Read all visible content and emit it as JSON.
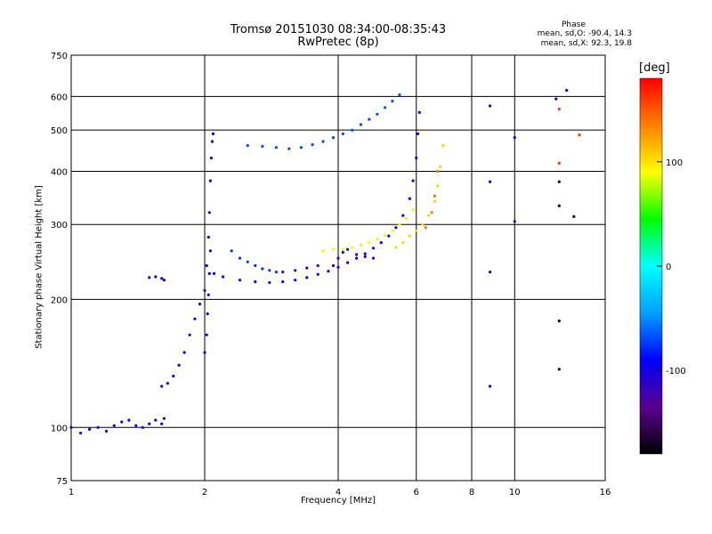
{
  "chart_data": {
    "type": "scatter",
    "title": "Tromsø 20151030 08:34:00-08:35:43",
    "subtitle": "RwPretec (8p)",
    "xlabel": "Frequency [MHz]",
    "ylabel": "Stationary phase Virtual Height [km]",
    "xscale": "log",
    "yscale": "log",
    "xlim": [
      1,
      16
    ],
    "ylim": [
      75,
      750
    ],
    "xticks": [
      1,
      2,
      4,
      6,
      8,
      10,
      16
    ],
    "xtick_labels": [
      "1",
      "2",
      "4",
      "6",
      "8",
      "10",
      "16"
    ],
    "yticks": [
      75,
      100,
      200,
      300,
      400,
      500,
      600,
      750
    ],
    "ytick_labels": [
      "75",
      "100",
      "200",
      "300",
      "400",
      "500",
      "600",
      "750"
    ],
    "grid": true,
    "phase_legend": {
      "heading": "Phase",
      "line_o": "mean, sd,O: -90.4, 14.3",
      "line_x": "mean, sd,X:  92.3, 19.8"
    },
    "colorbar": {
      "label": "[deg]",
      "ticks": [
        100,
        0,
        -100
      ],
      "tick_labels": [
        "100",
        "0",
        "-100"
      ],
      "range": [
        -180,
        180
      ],
      "colors": [
        "#000000",
        "#5a0090",
        "#0000ff",
        "#00a0ff",
        "#00ffff",
        "#00ff00",
        "#ffff00",
        "#ff8000",
        "#ff0000"
      ]
    },
    "traces": [
      {
        "name": "",
        "phase": -95,
        "points": [
          [
            1.0,
            100
          ],
          [
            1.05,
            97
          ],
          [
            1.1,
            99
          ],
          [
            1.15,
            100
          ],
          [
            1.2,
            98
          ],
          [
            1.25,
            101
          ],
          [
            1.3,
            103
          ],
          [
            1.35,
            104
          ],
          [
            1.4,
            101
          ],
          [
            1.45,
            100
          ],
          [
            1.5,
            102
          ],
          [
            1.55,
            104
          ],
          [
            1.6,
            102
          ],
          [
            1.62,
            105
          ]
        ]
      },
      {
        "name": "",
        "phase": -100,
        "points": [
          [
            1.5,
            225
          ],
          [
            1.55,
            226
          ],
          [
            1.6,
            224
          ],
          [
            1.62,
            222
          ]
        ]
      },
      {
        "name": "",
        "phase": -95,
        "points": [
          [
            1.6,
            125
          ],
          [
            1.65,
            127
          ],
          [
            1.7,
            132
          ],
          [
            1.75,
            140
          ],
          [
            1.8,
            150
          ],
          [
            1.85,
            165
          ],
          [
            1.9,
            180
          ],
          [
            1.95,
            195
          ],
          [
            2.0,
            210
          ],
          [
            2.02,
            240
          ],
          [
            2.04,
            280
          ],
          [
            2.05,
            320
          ],
          [
            2.06,
            380
          ],
          [
            2.07,
            430
          ],
          [
            2.08,
            470
          ],
          [
            2.09,
            490
          ]
        ]
      },
      {
        "name": "",
        "phase": -90,
        "points": [
          [
            2.0,
            150
          ],
          [
            2.02,
            165
          ],
          [
            2.03,
            185
          ],
          [
            2.04,
            205
          ],
          [
            2.05,
            230
          ],
          [
            2.06,
            260
          ]
        ]
      },
      {
        "name": "",
        "phase": -95,
        "points": [
          [
            2.1,
            230
          ],
          [
            2.2,
            226
          ],
          [
            2.4,
            222
          ],
          [
            2.6,
            220
          ],
          [
            2.8,
            219
          ],
          [
            3.0,
            220
          ],
          [
            3.2,
            222
          ],
          [
            3.4,
            225
          ],
          [
            3.6,
            229
          ],
          [
            3.8,
            233
          ],
          [
            4.0,
            238
          ],
          [
            4.2,
            244
          ],
          [
            4.4,
            250
          ],
          [
            4.6,
            256
          ],
          [
            4.8,
            264
          ],
          [
            5.0,
            272
          ],
          [
            5.2,
            282
          ],
          [
            5.4,
            295
          ],
          [
            5.6,
            315
          ],
          [
            5.8,
            345
          ],
          [
            5.9,
            380
          ],
          [
            6.0,
            430
          ],
          [
            6.05,
            490
          ],
          [
            6.1,
            550
          ]
        ]
      },
      {
        "name": "",
        "phase": -75,
        "points": [
          [
            2.3,
            260
          ],
          [
            2.4,
            250
          ],
          [
            2.5,
            245
          ],
          [
            2.6,
            240
          ],
          [
            2.7,
            236
          ],
          [
            2.8,
            234
          ],
          [
            2.9,
            232
          ]
        ]
      },
      {
        "name": "",
        "phase": -120,
        "points": [
          [
            3.0,
            232
          ],
          [
            3.2,
            234
          ],
          [
            3.4,
            237
          ],
          [
            3.6,
            240
          ]
        ]
      },
      {
        "name": "",
        "phase": -70,
        "points": [
          [
            2.5,
            460
          ],
          [
            2.7,
            458
          ],
          [
            2.9,
            455
          ],
          [
            3.1,
            452
          ],
          [
            3.3,
            455
          ],
          [
            3.5,
            462
          ],
          [
            3.7,
            470
          ],
          [
            3.9,
            480
          ],
          [
            4.1,
            490
          ],
          [
            4.3,
            500
          ],
          [
            4.5,
            515
          ],
          [
            4.7,
            530
          ],
          [
            4.9,
            545
          ],
          [
            5.1,
            565
          ],
          [
            5.3,
            585
          ],
          [
            5.5,
            605
          ]
        ]
      },
      {
        "name": "",
        "phase": 95,
        "points": [
          [
            3.7,
            260
          ],
          [
            3.9,
            262
          ],
          [
            4.1,
            262
          ],
          [
            4.3,
            265
          ],
          [
            4.5,
            268
          ],
          [
            4.7,
            272
          ],
          [
            4.9,
            277
          ],
          [
            5.1,
            283
          ],
          [
            5.3,
            290
          ],
          [
            5.5,
            300
          ],
          [
            5.7,
            310
          ],
          [
            5.9,
            325
          ]
        ]
      },
      {
        "name": "",
        "phase": 105,
        "points": [
          [
            5.4,
            265
          ],
          [
            5.6,
            272
          ],
          [
            5.8,
            282
          ],
          [
            6.0,
            290
          ],
          [
            6.2,
            300
          ],
          [
            6.4,
            315
          ],
          [
            6.6,
            340
          ],
          [
            6.7,
            370
          ],
          [
            6.8,
            410
          ],
          [
            6.9,
            460
          ]
        ]
      },
      {
        "name": "",
        "phase": 140,
        "points": [
          [
            6.3,
            295
          ],
          [
            6.5,
            320
          ],
          [
            6.6,
            350
          ],
          [
            6.7,
            400
          ]
        ]
      },
      {
        "name": "",
        "phase": -110,
        "points": [
          [
            3.9,
            240
          ],
          [
            4.0,
            250
          ],
          [
            4.1,
            258
          ],
          [
            4.2,
            262
          ],
          [
            4.4,
            255
          ],
          [
            4.6,
            252
          ],
          [
            4.8,
            250
          ]
        ]
      },
      {
        "name": "",
        "phase": -100,
        "points": [
          [
            8.8,
            125
          ],
          [
            8.8,
            232
          ],
          [
            8.8,
            378
          ],
          [
            8.8,
            570
          ],
          [
            10.0,
            305
          ],
          [
            10.0,
            480
          ],
          [
            12.4,
            592
          ],
          [
            13.1,
            620
          ]
        ]
      },
      {
        "name": "",
        "phase": 160,
        "points": [
          [
            12.6,
            418
          ],
          [
            12.6,
            560
          ],
          [
            14.0,
            487
          ]
        ]
      },
      {
        "name": "",
        "phase": -170,
        "points": [
          [
            12.6,
            137
          ],
          [
            12.6,
            178
          ],
          [
            12.6,
            332
          ],
          [
            12.6,
            378
          ],
          [
            13.6,
            313
          ]
        ]
      }
    ]
  }
}
